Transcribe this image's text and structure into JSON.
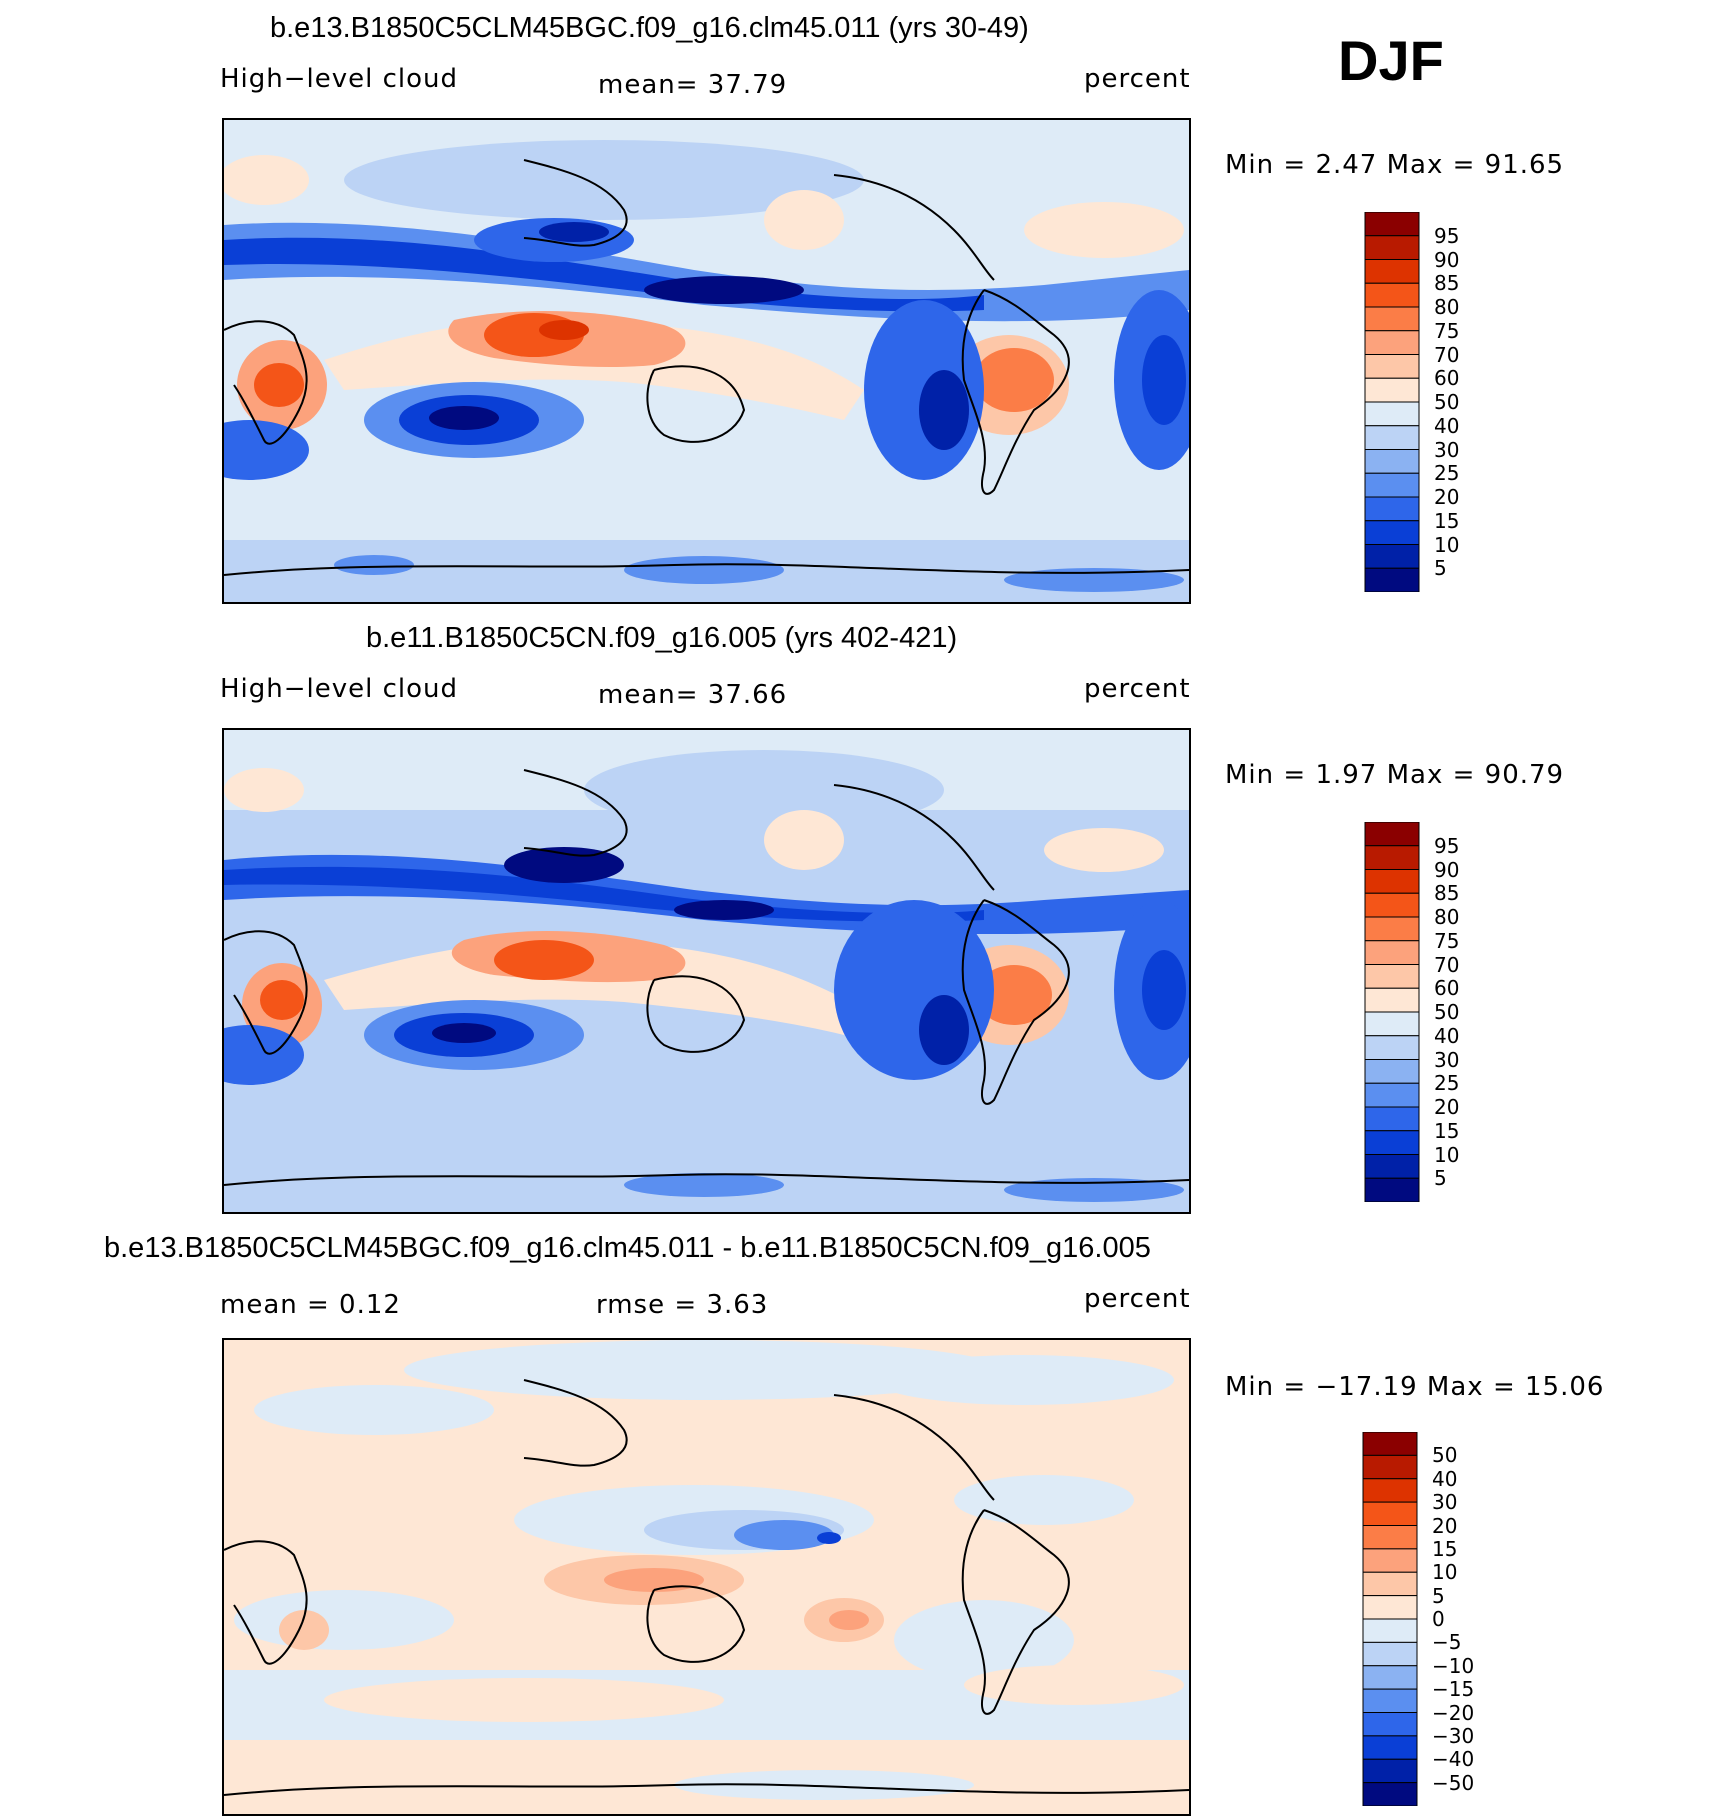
{
  "season": "DJF",
  "panels": [
    {
      "title": "b.e13.B1850C5CLM45BGC.f09_g16.clm45.011 (yrs 30-49)",
      "left_label": "High−level cloud",
      "mid_label": "mean=   37.79",
      "units": "percent",
      "minmax": "Min =    2.47 Max =   91.65",
      "palette": "abs"
    },
    {
      "title": "b.e11.B1850C5CN.f09_g16.005 (yrs 402-421)",
      "left_label": "High−level cloud",
      "mid_label": "mean=   37.66",
      "units": "percent",
      "minmax": "Min =    1.97 Max =   90.79",
      "palette": "abs"
    },
    {
      "title": "b.e13.B1850C5CLM45BGC.f09_g16.clm45.011 - b.e11.B1850C5CN.f09_g16.005",
      "left_label": "mean =    0.12",
      "mid_label": "rmse =    3.63",
      "units": "percent",
      "minmax": "Min = −17.19 Max =   15.06",
      "palette": "diff"
    }
  ],
  "colorbars": {
    "abs": {
      "labels": [
        "95",
        "90",
        "85",
        "80",
        "75",
        "70",
        "60",
        "50",
        "40",
        "30",
        "25",
        "20",
        "15",
        "10",
        "5"
      ],
      "colors": [
        "#8b0000",
        "#b81a00",
        "#dd3300",
        "#f45518",
        "#fb7d47",
        "#fca27c",
        "#fdc7a8",
        "#fee7d5",
        "#deebf7",
        "#bcd3f5",
        "#8bb2f2",
        "#5b8ff0",
        "#2e66ea",
        "#0a3fd6",
        "#0021a8",
        "#000a80"
      ]
    },
    "diff": {
      "labels": [
        "50",
        "40",
        "30",
        "20",
        "15",
        "10",
        "5",
        "0",
        "−5",
        "−10",
        "−15",
        "−20",
        "−30",
        "−40",
        "−50"
      ],
      "colors": [
        "#8b0000",
        "#b81a00",
        "#dd3300",
        "#f45518",
        "#fb7d47",
        "#fca27c",
        "#fdc7a8",
        "#fee7d5",
        "#deebf7",
        "#bcd3f5",
        "#8bb2f2",
        "#5b8ff0",
        "#2e66ea",
        "#0a3fd6",
        "#0021a8",
        "#000a80"
      ]
    }
  }
}
